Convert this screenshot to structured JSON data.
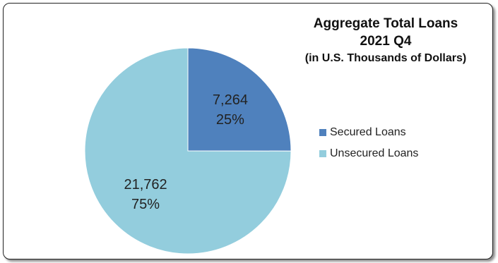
{
  "chart_data": {
    "type": "pie",
    "title": "Aggregate Total Loans",
    "subtitle": "2021 Q4",
    "unit_note": "(in U.S. Thousands of Dollars)",
    "slices": [
      {
        "name": "Secured Loans",
        "value": 7264,
        "value_label": "7,264",
        "percent_label": "25%",
        "color": "#4f81bd"
      },
      {
        "name": "Unsecured Loans",
        "value": 21762,
        "value_label": "21,762",
        "percent_label": "75%",
        "color": "#93cddd"
      }
    ],
    "legend_position": "right"
  }
}
